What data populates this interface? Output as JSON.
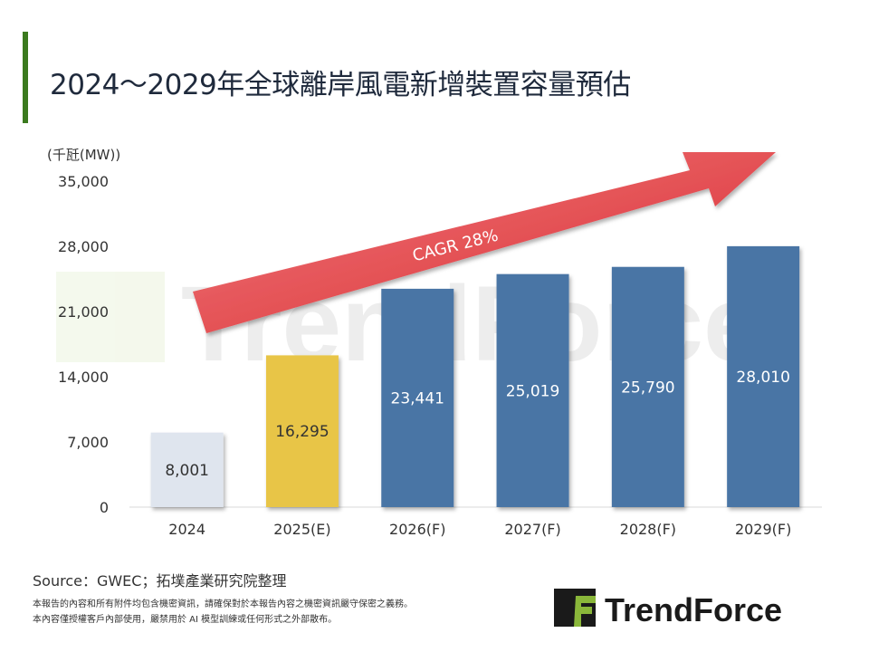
{
  "title": "2024～2029年全球離岸風電新增裝置容量預估",
  "source": "Source：GWEC；拓墣產業研究院整理",
  "disclaimer": [
    "本報告的內容和所有附件均包含機密資訊，請確保對於本報告內容之機密資訊嚴守保密之義務。",
    "本內容僅授權客戶內部使用，嚴禁用於 AI 模型訓練或任何形式之外部散布。"
  ],
  "logo_text": "TrendForce",
  "watermark_text": "TrendForce",
  "chart_data": {
    "type": "bar",
    "title": "",
    "ylabel": "(千瓩(MW))",
    "xlabel": "",
    "categories": [
      "2024",
      "2025(E)",
      "2026(F)",
      "2027(F)",
      "2028(F)",
      "2029(F)"
    ],
    "values": [
      8001,
      16295,
      23441,
      25019,
      25790,
      28010
    ],
    "data_labels": [
      "8,001",
      "16,295",
      "23,441",
      "25,019",
      "25,790",
      "28,010"
    ],
    "colors": [
      "#dfe5ee",
      "#e8c547",
      "#4a74a5",
      "#4a74a5",
      "#4a74a5",
      "#4a74a5"
    ],
    "label_colors": [
      "#333333",
      "#333333",
      "#ffffff",
      "#ffffff",
      "#ffffff",
      "#ffffff"
    ],
    "ylim": [
      0,
      35000
    ],
    "yticks": [
      0,
      7000,
      14000,
      21000,
      28000,
      35000
    ],
    "ytick_labels": [
      "0",
      "7,000",
      "14,000",
      "21,000",
      "28,000",
      "35,000"
    ],
    "grid": false,
    "annotation": {
      "text": "CAGR 28%",
      "color": "#e0343a"
    }
  }
}
